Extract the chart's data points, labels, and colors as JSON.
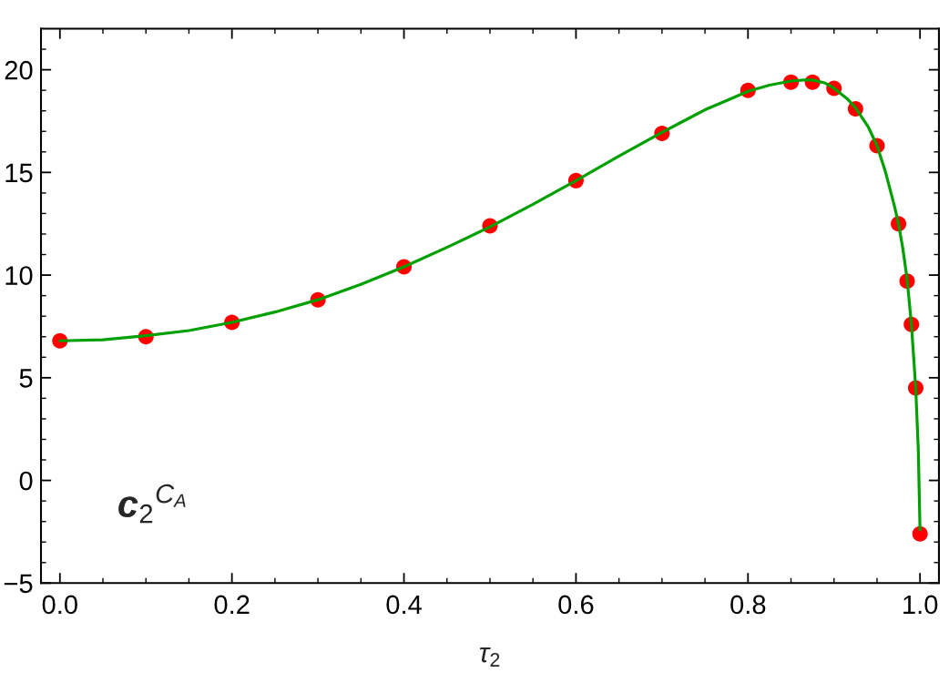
{
  "chart_data": {
    "type": "scatter",
    "xlabel": "τ$_{2}$",
    "annotations": [
      "c$_{2}$$^{C}$$_{A}$"
    ],
    "xlim": [
      -0.022,
      1.022
    ],
    "ylim": [
      -5,
      22
    ],
    "xticks": [
      {
        "value": 0,
        "label": "0.0"
      },
      {
        "value": 0.05,
        "label": null
      },
      {
        "value": 0.1,
        "label": null
      },
      {
        "value": 0.15,
        "label": null
      },
      {
        "value": 0.2,
        "label": "0.2"
      },
      {
        "value": 0.25,
        "label": null
      },
      {
        "value": 0.3,
        "label": null
      },
      {
        "value": 0.35,
        "label": null
      },
      {
        "value": 0.4,
        "label": "0.4"
      },
      {
        "value": 0.45,
        "label": null
      },
      {
        "value": 0.5,
        "label": null
      },
      {
        "value": 0.55,
        "label": null
      },
      {
        "value": 0.6,
        "label": "0.6"
      },
      {
        "value": 0.65,
        "label": null
      },
      {
        "value": 0.7,
        "label": null
      },
      {
        "value": 0.75,
        "label": null
      },
      {
        "value": 0.8,
        "label": "0.8"
      },
      {
        "value": 0.85,
        "label": null
      },
      {
        "value": 0.9,
        "label": null
      },
      {
        "value": 0.95,
        "label": null
      },
      {
        "value": 1.0,
        "label": "1.0"
      }
    ],
    "yticks": [
      -5,
      {
        "value": -4,
        "label": null
      },
      {
        "value": -3,
        "label": null
      },
      {
        "value": -2,
        "label": null
      },
      {
        "value": -1,
        "label": null
      },
      0,
      {
        "value": 1,
        "label": null
      },
      {
        "value": 2,
        "label": null
      },
      {
        "value": 3,
        "label": null
      },
      {
        "value": 4,
        "label": null
      },
      5,
      {
        "value": 6,
        "label": null
      },
      {
        "value": 7,
        "label": null
      },
      {
        "value": 8,
        "label": null
      },
      {
        "value": 9,
        "label": null
      },
      10,
      {
        "value": 11,
        "label": null
      },
      {
        "value": 12,
        "label": null
      },
      {
        "value": 13,
        "label": null
      },
      {
        "value": 14,
        "label": null
      },
      15,
      {
        "value": 16,
        "label": null
      },
      {
        "value": 17,
        "label": null
      },
      {
        "value": 18,
        "label": null
      },
      {
        "value": 19,
        "label": null
      },
      20,
      {
        "value": 21,
        "label": null
      }
    ],
    "series": [
      {
        "color": "#ff0000",
        "marker": "circle",
        "x": [
          0,
          0.1,
          0.2,
          0.3,
          0.4,
          0.5,
          0.6,
          0.7,
          0.8,
          0.85,
          0.875,
          0.9,
          0.925,
          0.95,
          0.975,
          0.985,
          0.99,
          0.995,
          1.0
        ],
        "values": [
          6.8,
          7.0,
          7.7,
          8.8,
          10.4,
          12.4,
          14.6,
          16.9,
          19.0,
          19.4,
          19.4,
          19.1,
          18.1,
          16.3,
          12.5,
          9.7,
          7.6,
          4.5,
          -2.6
        ]
      },
      {
        "type": "line",
        "color": "#00a000",
        "marker": "none",
        "line_style": "solid",
        "x": [
          0,
          0.05,
          0.1,
          0.15,
          0.2,
          0.25,
          0.3,
          0.35,
          0.4,
          0.45,
          0.5,
          0.55,
          0.6,
          0.65,
          0.7,
          0.725,
          0.75,
          0.775,
          0.8,
          0.825,
          0.85,
          0.865,
          0.875,
          0.89,
          0.9,
          0.915,
          0.925,
          0.94,
          0.95,
          0.96,
          0.97,
          0.975,
          0.98,
          0.985,
          0.99,
          0.995,
          0.998,
          1.0
        ],
        "values": [
          6.8,
          6.85,
          7.05,
          7.3,
          7.7,
          8.2,
          8.8,
          9.55,
          10.4,
          11.35,
          12.35,
          13.45,
          14.6,
          15.8,
          16.95,
          17.5,
          18.05,
          18.5,
          18.95,
          19.25,
          19.45,
          19.5,
          19.5,
          19.35,
          19.1,
          18.6,
          18.15,
          17.2,
          16.3,
          15.0,
          13.4,
          12.5,
          11.3,
          9.8,
          7.6,
          4.5,
          1.5,
          -2.4
        ]
      }
    ],
    "grid": false,
    "legend": false
  }
}
